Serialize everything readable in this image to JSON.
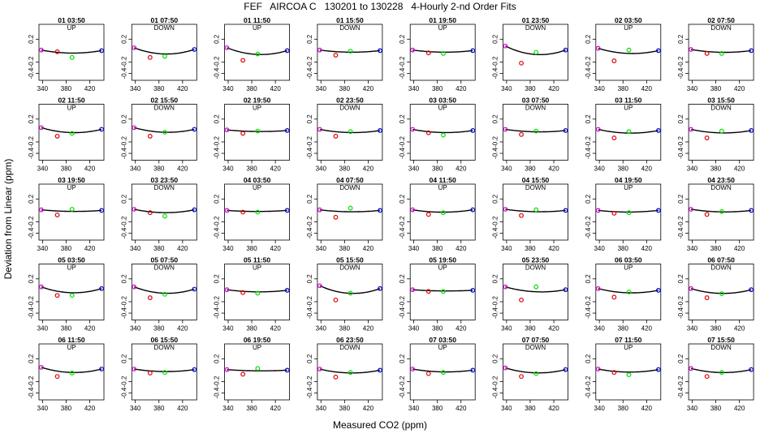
{
  "page": {
    "title": "FEF   AIRCOA C   130201 to 130228   4-Hourly 2-nd Order Fits",
    "ylabel": "Deviation from Linear (ppm)",
    "xlabel": "Measured CO2 (ppm)"
  },
  "chart_data": {
    "type": "scatter",
    "x_ticks": [
      340,
      380,
      420
    ],
    "y_ticks": [
      -0.4,
      -0.2,
      0.2
    ],
    "xlim": [
      334,
      444
    ],
    "ylim": [
      -0.52,
      0.46
    ],
    "grid": false,
    "standards_co2": [
      338,
      365,
      390,
      440
    ],
    "point_colors": [
      "#cc00cc",
      "#dd0000",
      "#00dd00",
      "#0000cc"
    ],
    "curve_color": "#000000",
    "panels": [
      {
        "label": "01 03:50",
        "direction": "UP",
        "pts": [
          0.01,
          -0.02,
          -0.12,
          0
        ]
      },
      {
        "label": "01 07:50",
        "direction": "DOWN",
        "pts": [
          0.05,
          -0.12,
          -0.1,
          0.02
        ]
      },
      {
        "label": "01 11:50",
        "direction": "UP",
        "pts": [
          0.05,
          -0.17,
          -0.06,
          0
        ]
      },
      {
        "label": "01 15:50",
        "direction": "DOWN",
        "pts": [
          0.01,
          -0.08,
          -0.01,
          0
        ]
      },
      {
        "label": "01 19:50",
        "direction": "UP",
        "pts": [
          0.01,
          -0.04,
          -0.05,
          0
        ]
      },
      {
        "label": "01 23:50",
        "direction": "DOWN",
        "pts": [
          0.08,
          -0.22,
          -0.03,
          0.01
        ]
      },
      {
        "label": "02 03:50",
        "direction": "UP",
        "pts": [
          0.04,
          -0.18,
          0.01,
          0
        ]
      },
      {
        "label": "02 07:50",
        "direction": "DOWN",
        "pts": [
          0.02,
          -0.05,
          -0.05,
          0
        ]
      },
      {
        "label": "02 11:50",
        "direction": "UP",
        "pts": [
          0.05,
          -0.1,
          -0.05,
          0.02
        ]
      },
      {
        "label": "02 15:50",
        "direction": "DOWN",
        "pts": [
          0.05,
          -0.1,
          -0.03,
          0.02
        ]
      },
      {
        "label": "02 19:50",
        "direction": "UP",
        "pts": [
          0.01,
          -0.05,
          -0.01,
          0
        ]
      },
      {
        "label": "02 23:50",
        "direction": "DOWN",
        "pts": [
          0.02,
          -0.1,
          -0.02,
          0
        ]
      },
      {
        "label": "03 03:50",
        "direction": "UP",
        "pts": [
          0.02,
          -0.04,
          -0.08,
          0
        ]
      },
      {
        "label": "03 07:50",
        "direction": "DOWN",
        "pts": [
          0.02,
          -0.07,
          -0.01,
          0
        ]
      },
      {
        "label": "03 11:50",
        "direction": "UP",
        "pts": [
          0.02,
          -0.13,
          -0.02,
          0
        ]
      },
      {
        "label": "03 15:50",
        "direction": "DOWN",
        "pts": [
          0.02,
          -0.13,
          -0.01,
          0
        ]
      },
      {
        "label": "03 19:50",
        "direction": "UP",
        "pts": [
          0.01,
          -0.08,
          0.02,
          0
        ]
      },
      {
        "label": "03 23:50",
        "direction": "DOWN",
        "pts": [
          0.02,
          -0.04,
          -0.1,
          0.01
        ]
      },
      {
        "label": "04 03:50",
        "direction": "UP",
        "pts": [
          0,
          -0.03,
          -0.03,
          0
        ]
      },
      {
        "label": "04 07:50",
        "direction": "DOWN",
        "pts": [
          0.01,
          -0.12,
          0.04,
          0
        ]
      },
      {
        "label": "04 11:50",
        "direction": "UP",
        "pts": [
          0.01,
          -0.07,
          -0.04,
          0.01
        ]
      },
      {
        "label": "04 15:50",
        "direction": "DOWN",
        "pts": [
          0.02,
          -0.09,
          0.01,
          0
        ]
      },
      {
        "label": "04 19:50",
        "direction": "UP",
        "pts": [
          0,
          -0.05,
          -0.04,
          0
        ]
      },
      {
        "label": "04 23:50",
        "direction": "DOWN",
        "pts": [
          0.02,
          -0.07,
          -0.02,
          0
        ]
      },
      {
        "label": "05 03:50",
        "direction": "UP",
        "pts": [
          0.06,
          -0.09,
          -0.09,
          0.03
        ]
      },
      {
        "label": "05 07:50",
        "direction": "DOWN",
        "pts": [
          0.06,
          -0.13,
          -0.07,
          0.02
        ]
      },
      {
        "label": "05 11:50",
        "direction": "UP",
        "pts": [
          0.01,
          -0.04,
          -0.05,
          0
        ]
      },
      {
        "label": "05 15:50",
        "direction": "DOWN",
        "pts": [
          0.08,
          -0.17,
          -0.05,
          0.03
        ]
      },
      {
        "label": "05 19:50",
        "direction": "UP",
        "pts": [
          0.01,
          -0.02,
          -0.02,
          0
        ]
      },
      {
        "label": "05 23:50",
        "direction": "DOWN",
        "pts": [
          0.06,
          -0.17,
          0.06,
          0.01
        ]
      },
      {
        "label": "06 03:50",
        "direction": "UP",
        "pts": [
          0.03,
          -0.12,
          -0.03,
          0
        ]
      },
      {
        "label": "06 07:50",
        "direction": "DOWN",
        "pts": [
          0.03,
          -0.13,
          -0.06,
          0.01
        ]
      },
      {
        "label": "06 11:50",
        "direction": "UP",
        "pts": [
          0.05,
          -0.11,
          -0.05,
          0.02
        ]
      },
      {
        "label": "06 15:50",
        "direction": "DOWN",
        "pts": [
          0.02,
          -0.05,
          -0.04,
          0.01
        ]
      },
      {
        "label": "06 19:50",
        "direction": "UP",
        "pts": [
          0.01,
          -0.07,
          0.03,
          0
        ]
      },
      {
        "label": "06 23:50",
        "direction": "DOWN",
        "pts": [
          0.02,
          -0.12,
          -0.04,
          0
        ]
      },
      {
        "label": "07 03:50",
        "direction": "UP",
        "pts": [
          0.02,
          -0.06,
          -0.04,
          0
        ]
      },
      {
        "label": "07 07:50",
        "direction": "DOWN",
        "pts": [
          0.04,
          -0.11,
          -0.06,
          0.01
        ]
      },
      {
        "label": "07 11:50",
        "direction": "UP",
        "pts": [
          0.02,
          -0.04,
          -0.08,
          0.01
        ]
      },
      {
        "label": "07 15:50",
        "direction": "DOWN",
        "pts": [
          0.03,
          -0.11,
          -0.04,
          0.01
        ]
      }
    ]
  }
}
